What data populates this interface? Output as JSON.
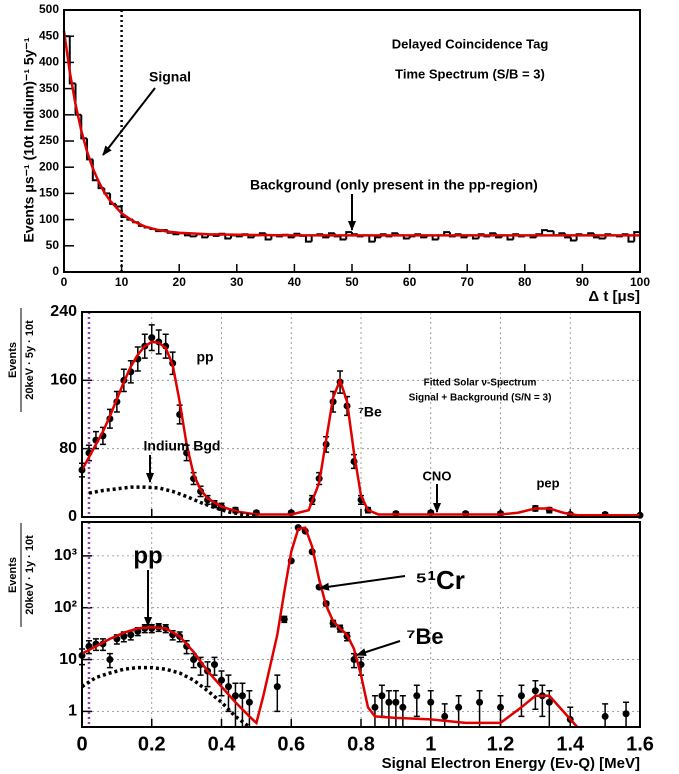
{
  "chart_data": [
    {
      "type": "histogram",
      "title": "Delayed Coincidence Tag",
      "subtitle": "Time Spectrum (S/B = 3)",
      "xlabel": "Δ t [μs]",
      "ylabel": "Events μs⁻¹ (10t Indium)⁻¹ 5y⁻¹",
      "annotations": [
        {
          "text": "Signal"
        },
        {
          "text": "Background (only present in the pp-region)"
        }
      ],
      "xlim": [
        0,
        100
      ],
      "xticks": [
        0,
        10,
        20,
        30,
        40,
        50,
        60,
        70,
        80,
        90,
        100
      ],
      "ylim": [
        0,
        500
      ],
      "yticks": [
        0,
        50,
        100,
        150,
        200,
        250,
        300,
        350,
        400,
        450,
        500
      ],
      "vlines": [
        10
      ],
      "vline_color": "#000000",
      "color": "#000000",
      "bins": [
        0,
        1,
        2,
        3,
        4,
        5,
        6,
        7,
        8,
        9,
        10,
        11,
        12,
        13,
        14,
        15,
        16,
        17,
        18,
        19,
        20,
        21,
        22,
        23,
        24,
        25,
        26,
        27,
        28,
        29,
        30,
        31,
        32,
        33,
        34,
        35,
        36,
        37,
        38,
        39,
        40,
        41,
        42,
        43,
        44,
        45,
        46,
        47,
        48,
        49,
        50,
        51,
        52,
        53,
        54,
        55,
        56,
        57,
        58,
        59,
        60,
        61,
        62,
        63,
        64,
        65,
        66,
        67,
        68,
        69,
        70,
        71,
        72,
        73,
        74,
        75,
        76,
        77,
        78,
        79,
        80,
        81,
        82,
        83,
        84,
        85,
        86,
        87,
        88,
        89,
        90,
        91,
        92,
        93,
        94,
        95,
        96,
        97,
        98,
        99,
        100
      ],
      "counts": [
        450,
        360,
        300,
        255,
        215,
        175,
        160,
        150,
        130,
        125,
        105,
        100,
        95,
        88,
        85,
        82,
        78,
        80,
        75,
        72,
        74,
        70,
        68,
        72,
        66,
        71,
        69,
        73,
        64,
        70,
        68,
        72,
        66,
        70,
        74,
        62,
        70,
        68,
        71,
        66,
        73,
        69,
        58,
        70,
        72,
        66,
        74,
        68,
        62,
        76,
        72,
        68,
        70,
        58,
        66,
        72,
        68,
        74,
        70,
        64,
        68,
        72,
        66,
        70,
        62,
        70,
        76,
        68,
        72,
        66,
        70,
        64,
        72,
        68,
        74,
        66,
        70,
        62,
        72,
        68,
        70,
        66,
        72,
        80,
        78,
        70,
        74,
        66,
        60,
        72,
        70,
        74,
        66,
        64,
        72,
        70,
        68,
        72,
        58,
        76
      ],
      "fit": {
        "color": "#e00000",
        "x": [
          0,
          1,
          2,
          3,
          4,
          5,
          6,
          7,
          8,
          10,
          12,
          14,
          16,
          18,
          20,
          25,
          30,
          40,
          100
        ],
        "values": [
          460,
          382,
          320,
          270,
          230,
          198,
          173,
          152,
          136,
          112,
          97,
          87,
          81,
          77,
          75,
          72,
          71,
          70,
          70
        ]
      }
    },
    {
      "type": "scatter",
      "ylabel": {
        "numerator": "Events",
        "denominator": "20keV · 5y · 10t"
      },
      "annotations": [
        {
          "text": "pp"
        },
        {
          "text": "Fitted Solar ν-Spectrum"
        },
        {
          "text": "Signal + Background (S/N = 3)"
        },
        {
          "text": "⁷Be"
        },
        {
          "text": "Indium Bgd"
        },
        {
          "text": "CNO"
        },
        {
          "text": "pep"
        }
      ],
      "xlim": [
        0,
        1.6
      ],
      "xticks": [
        0,
        0.2,
        0.4,
        0.6,
        0.8,
        1,
        1.2,
        1.4,
        1.6
      ],
      "ylim": [
        0,
        240
      ],
      "yticks": [
        0,
        80,
        160,
        240
      ],
      "log_y": false,
      "grid": true,
      "vlines": [
        0.02
      ],
      "vline_color": "#9040b0",
      "series": [
        {
          "style": "points",
          "color": "#000000",
          "x": [
            0,
            0.02,
            0.04,
            0.06,
            0.08,
            0.1,
            0.12,
            0.14,
            0.16,
            0.18,
            0.2,
            0.22,
            0.24,
            0.26,
            0.28,
            0.3,
            0.32,
            0.34,
            0.36,
            0.38,
            0.4,
            0.44,
            0.5,
            0.6,
            0.66,
            0.68,
            0.7,
            0.72,
            0.74,
            0.76,
            0.78,
            0.8,
            0.82,
            0.9,
            1.0,
            1.1,
            1.2,
            1.3,
            1.34,
            1.4,
            1.5,
            1.6
          ],
          "values": [
            55,
            75,
            90,
            95,
            115,
            135,
            160,
            170,
            185,
            200,
            210,
            205,
            200,
            180,
            120,
            75,
            45,
            30,
            20,
            15,
            12,
            8,
            5,
            5,
            20,
            45,
            85,
            135,
            158,
            130,
            65,
            20,
            8,
            4,
            5,
            4,
            4,
            10,
            8,
            3,
            3,
            2
          ],
          "errors": [
            8,
            9,
            10,
            10,
            11,
            12,
            13,
            13,
            14,
            14,
            15,
            14,
            14,
            13,
            11,
            9,
            7,
            6,
            5,
            4,
            4,
            3,
            2,
            2,
            5,
            7,
            9,
            12,
            13,
            11,
            8,
            5,
            3,
            2,
            2,
            2,
            2,
            3,
            3,
            2,
            2,
            1
          ]
        },
        {
          "style": "line",
          "color": "#e00000",
          "x": [
            0,
            0.02,
            0.04,
            0.06,
            0.08,
            0.1,
            0.12,
            0.14,
            0.16,
            0.18,
            0.2,
            0.22,
            0.24,
            0.26,
            0.28,
            0.3,
            0.32,
            0.34,
            0.36,
            0.4,
            0.45,
            0.5,
            0.6,
            0.65,
            0.68,
            0.7,
            0.72,
            0.74,
            0.76,
            0.78,
            0.8,
            0.82,
            0.85,
            1.0,
            1.2,
            1.25,
            1.3,
            1.34,
            1.38,
            1.42,
            1.6
          ],
          "values": [
            55,
            70,
            85,
            100,
            118,
            138,
            158,
            176,
            190,
            200,
            205,
            204,
            198,
            178,
            135,
            85,
            50,
            32,
            22,
            12,
            6,
            3,
            3,
            8,
            40,
            90,
            140,
            160,
            135,
            75,
            25,
            8,
            3,
            3,
            3,
            5,
            10,
            10,
            5,
            2,
            2
          ]
        },
        {
          "style": "dotted",
          "color": "#000000",
          "x": [
            0.02,
            0.06,
            0.1,
            0.14,
            0.18,
            0.22,
            0.26,
            0.3,
            0.34,
            0.38,
            0.42,
            0.46,
            0.5
          ],
          "values": [
            28,
            31,
            33,
            35,
            35,
            34,
            30,
            24,
            17,
            11,
            6,
            3,
            1
          ]
        }
      ]
    },
    {
      "type": "scatter",
      "xlabel": "Signal Electron Energy (Eν-Q) [MeV]",
      "ylabel": {
        "numerator": "Events",
        "denominator": "20keV · 1y · 10t"
      },
      "annotations": [
        {
          "text": "pp"
        },
        {
          "text": "⁵¹Cr"
        },
        {
          "text": "⁷Be"
        }
      ],
      "xlim": [
        0,
        1.6
      ],
      "xticks": [
        0,
        0.2,
        0.4,
        0.6,
        0.8,
        1,
        1.2,
        1.4,
        1.6
      ],
      "ylim": [
        0.5,
        4500
      ],
      "yticks": [
        1,
        10,
        {
          "value": 100,
          "label": "10²"
        },
        {
          "value": 1000,
          "label": "10³"
        }
      ],
      "log_y": true,
      "grid": true,
      "vlines": [
        0.02
      ],
      "vline_color": "#9040b0",
      "series": [
        {
          "style": "points",
          "color": "#000000",
          "x": [
            0,
            0.02,
            0.04,
            0.06,
            0.08,
            0.1,
            0.12,
            0.14,
            0.16,
            0.18,
            0.2,
            0.22,
            0.24,
            0.26,
            0.28,
            0.3,
            0.32,
            0.34,
            0.36,
            0.38,
            0.4,
            0.42,
            0.44,
            0.46,
            0.48,
            0.56,
            0.58,
            0.6,
            0.62,
            0.64,
            0.66,
            0.68,
            0.7,
            0.72,
            0.74,
            0.76,
            0.78,
            0.8,
            0.84,
            0.86,
            0.88,
            0.9,
            0.92,
            0.96,
            1.0,
            1.04,
            1.08,
            1.14,
            1.2,
            1.26,
            1.3,
            1.32,
            1.34,
            1.4,
            1.5,
            1.56
          ],
          "values": [
            12,
            18,
            20,
            20,
            10,
            25,
            28,
            30,
            35,
            40,
            40,
            42,
            40,
            30,
            28,
            18,
            10,
            8,
            6,
            8,
            4,
            3,
            2,
            2,
            1.5,
            3,
            60,
            800,
            3500,
            3000,
            1200,
            250,
            120,
            50,
            40,
            28,
            10,
            8,
            1.2,
            2,
            1.5,
            1.5,
            1.2,
            2,
            1.5,
            0.8,
            1.2,
            1.5,
            1.2,
            2,
            2.5,
            2,
            1.5,
            0.7,
            0.8,
            0.9
          ],
          "errors": [
            4,
            5,
            5,
            5,
            3,
            5,
            6,
            6,
            6,
            7,
            7,
            7,
            7,
            6,
            6,
            5,
            3,
            3,
            3,
            3,
            2,
            2,
            1.5,
            1.5,
            1,
            2,
            8,
            30,
            60,
            55,
            35,
            16,
            11,
            7,
            6,
            5,
            3,
            3,
            0.8,
            1.2,
            1,
            1,
            0.8,
            1.2,
            1,
            0.6,
            0.8,
            1,
            0.8,
            1.2,
            1.4,
            1.2,
            1,
            0.5,
            0.6,
            0.6
          ]
        },
        {
          "style": "line",
          "color": "#e00000",
          "x": [
            0,
            0.04,
            0.08,
            0.12,
            0.16,
            0.2,
            0.24,
            0.28,
            0.32,
            0.36,
            0.4,
            0.44,
            0.48,
            0.5,
            0.52,
            0.56,
            0.58,
            0.6,
            0.62,
            0.64,
            0.66,
            0.68,
            0.7,
            0.72,
            0.74,
            0.76,
            0.78,
            0.8,
            0.82,
            0.84,
            0.9,
            1.0,
            1.1,
            1.2,
            1.26,
            1.3,
            1.34,
            1.38,
            1.42
          ],
          "values": [
            13,
            18,
            25,
            33,
            40,
            42,
            40,
            28,
            14,
            6,
            3,
            1.5,
            0.8,
            0.6,
            2,
            30,
            200,
            1200,
            3300,
            3500,
            1500,
            350,
            110,
            55,
            40,
            30,
            16,
            5,
            1.2,
            0.8,
            0.75,
            0.7,
            0.6,
            0.6,
            1.2,
            2,
            2,
            1,
            0.5
          ]
        },
        {
          "style": "dotted",
          "color": "#000000",
          "x": [
            0,
            0.04,
            0.08,
            0.12,
            0.16,
            0.2,
            0.24,
            0.28,
            0.32,
            0.36,
            0.4,
            0.44,
            0.48
          ],
          "values": [
            3,
            4.5,
            5.5,
            6.5,
            7,
            7,
            6.5,
            5.5,
            4,
            2.5,
            1.5,
            0.8,
            0.5
          ]
        }
      ]
    }
  ]
}
